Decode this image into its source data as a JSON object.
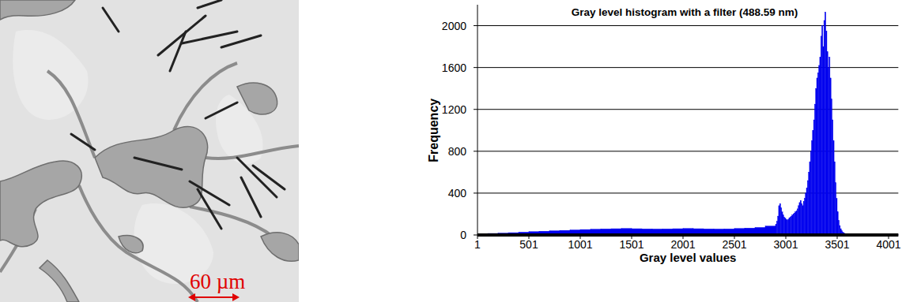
{
  "chart_data": {
    "type": "histogram",
    "title": "Gray level histogram with a filter (488.59 nm)",
    "x_label": "Gray level values",
    "y_label": "Frequency",
    "bins": [
      1,
      101,
      201,
      301,
      401,
      501,
      601,
      701,
      801,
      901,
      1001,
      1101,
      1201,
      1301,
      1401,
      1501,
      1601,
      1701,
      1801,
      1901,
      2001,
      2101,
      2201,
      2301,
      2401,
      2501,
      2601,
      2701,
      2801,
      2901,
      2911,
      2921,
      2931,
      2941,
      2951,
      2961,
      2971,
      2981,
      2991,
      3001,
      3011,
      3021,
      3031,
      3041,
      3051,
      3061,
      3071,
      3081,
      3091,
      3101,
      3111,
      3121,
      3131,
      3141,
      3151,
      3161,
      3171,
      3181,
      3191,
      3201,
      3211,
      3221,
      3231,
      3241,
      3251,
      3261,
      3271,
      3281,
      3291,
      3301,
      3311,
      3321,
      3331,
      3341,
      3351,
      3361,
      3371,
      3381,
      3391,
      3401,
      3411,
      3421,
      3431,
      3441,
      3451,
      3461,
      3471,
      3481,
      3491,
      3501,
      3511,
      3521,
      3531,
      3541,
      3551,
      3561,
      3571,
      3581,
      3591,
      3601,
      3701,
      3801,
      3901,
      4001,
      4096
    ],
    "values": [
      12,
      15,
      18,
      22,
      27,
      32,
      36,
      40,
      44,
      48,
      52,
      55,
      58,
      60,
      62,
      60,
      58,
      57,
      58,
      60,
      62,
      60,
      58,
      57,
      58,
      62,
      66,
      72,
      85,
      100,
      130,
      180,
      280,
      300,
      260,
      220,
      190,
      170,
      160,
      150,
      140,
      150,
      160,
      170,
      180,
      190,
      200,
      210,
      220,
      230,
      250,
      280,
      310,
      330,
      300,
      280,
      320,
      350,
      400,
      450,
      520,
      600,
      700,
      800,
      900,
      1000,
      1100,
      1250,
      1400,
      1500,
      1550,
      1620,
      1700,
      1900,
      2000,
      1800,
      2050,
      2130,
      1950,
      1750,
      1600,
      1700,
      1500,
      1300,
      1100,
      900,
      700,
      500,
      350,
      220,
      140,
      90,
      60,
      40,
      28,
      20,
      15,
      12,
      10,
      8,
      6,
      5,
      5,
      4
    ],
    "color": "#0000ee",
    "xlim": [
      1,
      4096
    ],
    "xticks": [
      1,
      501,
      1001,
      1501,
      2001,
      2501,
      3001,
      3501,
      4001
    ],
    "ylim": [
      0,
      2200
    ],
    "yticks": [
      0,
      400,
      800,
      1200,
      1600,
      2000
    ],
    "grid": true
  },
  "image": {
    "scale_label": "60 µm"
  }
}
